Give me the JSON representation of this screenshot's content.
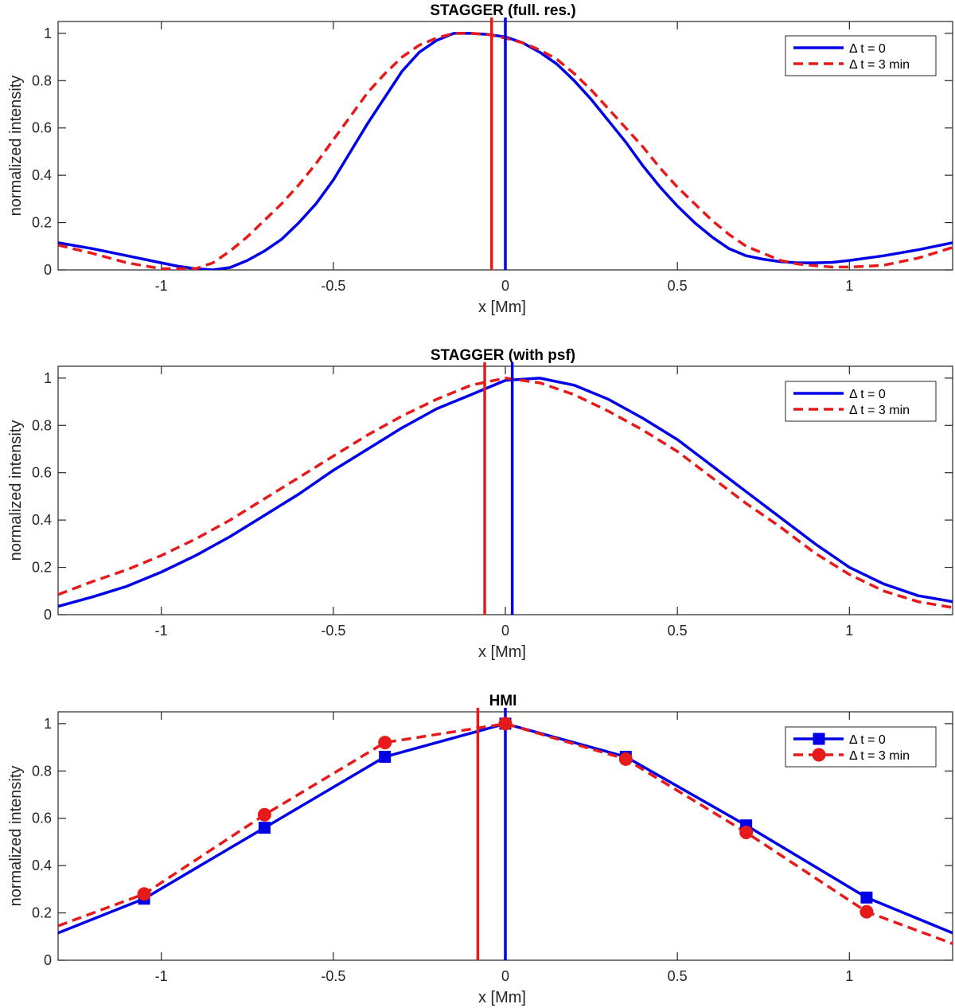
{
  "chart_data": [
    {
      "type": "line",
      "title": "STAGGER (full. res.)",
      "xlabel": "x [Mm]",
      "ylabel": "normalized intensity",
      "xlim": [
        -1.3,
        1.3
      ],
      "ylim": [
        0,
        1.05
      ],
      "xticks": [
        -1,
        -0.5,
        0,
        0.5,
        1
      ],
      "xtick_labels": [
        "-1",
        "-0.5",
        "0",
        "0.5",
        "1"
      ],
      "yticks": [
        0,
        0.2,
        0.4,
        0.6,
        0.8,
        1
      ],
      "ytick_labels": [
        "0",
        "0.2",
        "0.4",
        "0.6",
        "0.8",
        "1"
      ],
      "legend_position": "top-right",
      "series": [
        {
          "name": "Δ t = 0",
          "color": "#0000e6",
          "style": "solid",
          "marker": "none",
          "x": [
            -1.3,
            -1.2,
            -1.1,
            -1.0,
            -0.95,
            -0.9,
            -0.85,
            -0.8,
            -0.75,
            -0.7,
            -0.65,
            -0.6,
            -0.55,
            -0.5,
            -0.45,
            -0.4,
            -0.35,
            -0.3,
            -0.25,
            -0.2,
            -0.15,
            -0.1,
            -0.05,
            0.0,
            0.05,
            0.1,
            0.15,
            0.2,
            0.25,
            0.3,
            0.35,
            0.4,
            0.45,
            0.5,
            0.55,
            0.6,
            0.65,
            0.7,
            0.75,
            0.8,
            0.85,
            0.9,
            0.95,
            1.0,
            1.1,
            1.2,
            1.3
          ],
          "y": [
            0.115,
            0.09,
            0.06,
            0.03,
            0.015,
            0.005,
            0.0,
            0.01,
            0.04,
            0.08,
            0.13,
            0.2,
            0.28,
            0.38,
            0.5,
            0.62,
            0.73,
            0.84,
            0.92,
            0.97,
            1.0,
            1.0,
            0.995,
            0.985,
            0.96,
            0.92,
            0.87,
            0.8,
            0.72,
            0.63,
            0.54,
            0.44,
            0.35,
            0.27,
            0.2,
            0.14,
            0.09,
            0.06,
            0.045,
            0.035,
            0.03,
            0.03,
            0.032,
            0.04,
            0.06,
            0.085,
            0.115
          ]
        },
        {
          "name": "Δ t = 3 min",
          "color": "#e61a1a",
          "style": "dashed",
          "marker": "none",
          "x": [
            -1.3,
            -1.2,
            -1.1,
            -1.0,
            -0.9,
            -0.85,
            -0.8,
            -0.75,
            -0.7,
            -0.65,
            -0.6,
            -0.55,
            -0.5,
            -0.45,
            -0.4,
            -0.35,
            -0.3,
            -0.25,
            -0.2,
            -0.15,
            -0.1,
            -0.05,
            0.0,
            0.05,
            0.1,
            0.15,
            0.2,
            0.25,
            0.3,
            0.35,
            0.4,
            0.45,
            0.5,
            0.55,
            0.6,
            0.65,
            0.7,
            0.75,
            0.8,
            0.85,
            0.9,
            0.95,
            1.0,
            1.05,
            1.1,
            1.2,
            1.3
          ],
          "y": [
            0.105,
            0.07,
            0.03,
            0.005,
            0.005,
            0.03,
            0.08,
            0.14,
            0.21,
            0.28,
            0.36,
            0.45,
            0.55,
            0.65,
            0.75,
            0.83,
            0.9,
            0.95,
            0.98,
            1.0,
            1.0,
            0.995,
            0.98,
            0.96,
            0.93,
            0.89,
            0.83,
            0.76,
            0.68,
            0.6,
            0.52,
            0.43,
            0.35,
            0.28,
            0.21,
            0.15,
            0.1,
            0.07,
            0.04,
            0.025,
            0.018,
            0.012,
            0.012,
            0.015,
            0.02,
            0.05,
            0.095
          ]
        }
      ],
      "vlines": [
        {
          "x": -0.04,
          "color": "#e61a1a"
        },
        {
          "x": 0.0,
          "color": "#0000e6"
        }
      ]
    },
    {
      "type": "line",
      "title": "STAGGER (with psf)",
      "xlabel": "x [Mm]",
      "ylabel": "normalized intensity",
      "xlim": [
        -1.3,
        1.3
      ],
      "ylim": [
        0,
        1.05
      ],
      "xticks": [
        -1,
        -0.5,
        0,
        0.5,
        1
      ],
      "xtick_labels": [
        "-1",
        "-0.5",
        "0",
        "0.5",
        "1"
      ],
      "yticks": [
        0,
        0.2,
        0.4,
        0.6,
        0.8,
        1
      ],
      "ytick_labels": [
        "0",
        "0.2",
        "0.4",
        "0.6",
        "0.8",
        "1"
      ],
      "legend_position": "top-right",
      "series": [
        {
          "name": "Δ t = 0",
          "color": "#0000e6",
          "style": "solid",
          "marker": "none",
          "x": [
            -1.3,
            -1.2,
            -1.1,
            -1.0,
            -0.9,
            -0.8,
            -0.7,
            -0.6,
            -0.5,
            -0.4,
            -0.3,
            -0.2,
            -0.1,
            0.0,
            0.1,
            0.2,
            0.3,
            0.4,
            0.5,
            0.6,
            0.7,
            0.8,
            0.9,
            1.0,
            1.1,
            1.2,
            1.3
          ],
          "y": [
            0.035,
            0.075,
            0.12,
            0.18,
            0.25,
            0.33,
            0.42,
            0.51,
            0.61,
            0.7,
            0.79,
            0.87,
            0.93,
            0.99,
            1.0,
            0.97,
            0.91,
            0.83,
            0.74,
            0.63,
            0.52,
            0.41,
            0.3,
            0.2,
            0.13,
            0.08,
            0.055
          ]
        },
        {
          "name": "Δ t = 3 min",
          "color": "#e61a1a",
          "style": "dashed",
          "marker": "none",
          "x": [
            -1.3,
            -1.2,
            -1.1,
            -1.0,
            -0.9,
            -0.8,
            -0.7,
            -0.6,
            -0.5,
            -0.4,
            -0.3,
            -0.2,
            -0.1,
            0.0,
            0.1,
            0.2,
            0.3,
            0.4,
            0.5,
            0.6,
            0.7,
            0.8,
            0.9,
            1.0,
            1.1,
            1.2,
            1.3
          ],
          "y": [
            0.085,
            0.14,
            0.19,
            0.25,
            0.32,
            0.4,
            0.49,
            0.58,
            0.67,
            0.76,
            0.84,
            0.91,
            0.97,
            1.0,
            0.98,
            0.93,
            0.86,
            0.78,
            0.69,
            0.58,
            0.47,
            0.37,
            0.26,
            0.17,
            0.1,
            0.055,
            0.03
          ]
        }
      ],
      "vlines": [
        {
          "x": -0.06,
          "color": "#e61a1a"
        },
        {
          "x": 0.02,
          "color": "#0000e6"
        }
      ]
    },
    {
      "type": "line",
      "title": "HMI",
      "xlabel": "x [Mm]",
      "ylabel": "normalized intensity",
      "xlim": [
        -1.3,
        1.3
      ],
      "ylim": [
        0,
        1.05
      ],
      "xticks": [
        -1,
        -0.5,
        0,
        0.5,
        1
      ],
      "xtick_labels": [
        "-1",
        "-0.5",
        "0",
        "0.5",
        "1"
      ],
      "yticks": [
        0,
        0.2,
        0.4,
        0.6,
        0.8,
        1
      ],
      "ytick_labels": [
        "0",
        "0.2",
        "0.4",
        "0.6",
        "0.8",
        "1"
      ],
      "legend_position": "top-right",
      "series": [
        {
          "name": "Δ t = 0",
          "color": "#0000e6",
          "style": "solid",
          "marker": "square",
          "x": [
            -1.3,
            -1.05,
            -0.7,
            -0.35,
            0.0,
            0.35,
            0.7,
            1.05,
            1.3
          ],
          "y": [
            0.115,
            0.26,
            0.56,
            0.86,
            1.0,
            0.86,
            0.57,
            0.265,
            0.115
          ],
          "marker_x": [
            -1.05,
            -0.7,
            -0.35,
            0.0,
            0.35,
            0.7,
            1.05
          ]
        },
        {
          "name": "Δ t = 3 min",
          "color": "#e61a1a",
          "style": "dashed",
          "marker": "circle",
          "x": [
            -1.3,
            -1.05,
            -0.7,
            -0.35,
            0.0,
            0.35,
            0.7,
            1.05,
            1.3
          ],
          "y": [
            0.145,
            0.28,
            0.615,
            0.92,
            1.0,
            0.85,
            0.54,
            0.205,
            0.07
          ],
          "marker_x": [
            -1.05,
            -0.7,
            -0.35,
            0.0,
            0.35,
            0.7,
            1.05
          ]
        }
      ],
      "vlines": [
        {
          "x": -0.08,
          "color": "#e61a1a"
        },
        {
          "x": 0.0,
          "color": "#0000e6"
        }
      ]
    }
  ]
}
